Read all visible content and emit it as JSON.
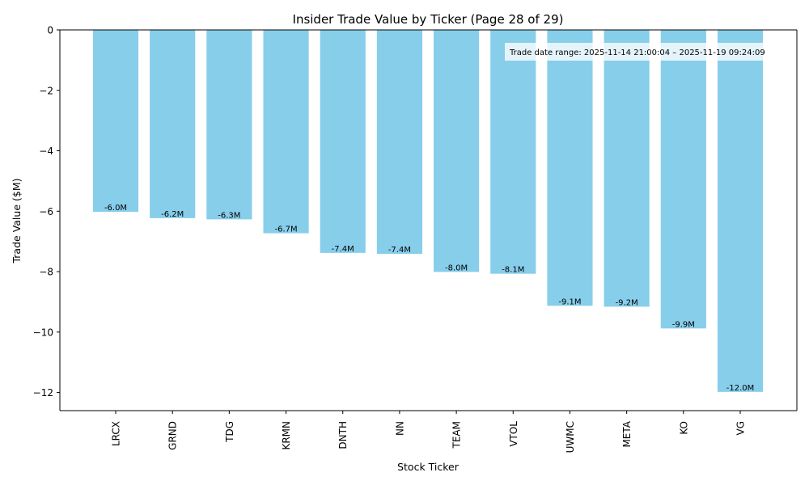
{
  "chart_data": {
    "type": "bar",
    "title": "Insider Trade Value by Ticker (Page 28 of 29)",
    "xlabel": "Stock Ticker",
    "ylabel": "Trade Value ($M)",
    "categories": [
      "LRCX",
      "GRND",
      "TDG",
      "KRMN",
      "DNTH",
      "NN",
      "TEAM",
      "VTOL",
      "UWMC",
      "META",
      "KO",
      "VG"
    ],
    "values": [
      -6.02,
      -6.23,
      -6.27,
      -6.73,
      -7.38,
      -7.41,
      -8.01,
      -8.07,
      -9.13,
      -9.16,
      -9.88,
      -11.98
    ],
    "data_labels": [
      "-6.0M",
      "-6.2M",
      "-6.3M",
      "-6.7M",
      "-7.4M",
      "-7.4M",
      "-8.0M",
      "-8.1M",
      "-9.1M",
      "-9.2M",
      "-9.9M",
      "-12.0M"
    ],
    "ylim": [
      -12.6,
      0
    ],
    "yticks": [
      0,
      -2,
      -4,
      -6,
      -8,
      -10,
      -12
    ],
    "ytick_labels": [
      "0",
      "−2",
      "−4",
      "−6",
      "−8",
      "−10",
      "−12"
    ],
    "bar_color": "#87ceeb",
    "annotation": "Trade date range: 2025-11-14 21:00:04 – 2025-11-19 09:24:09",
    "grid": false,
    "legend": "none"
  }
}
